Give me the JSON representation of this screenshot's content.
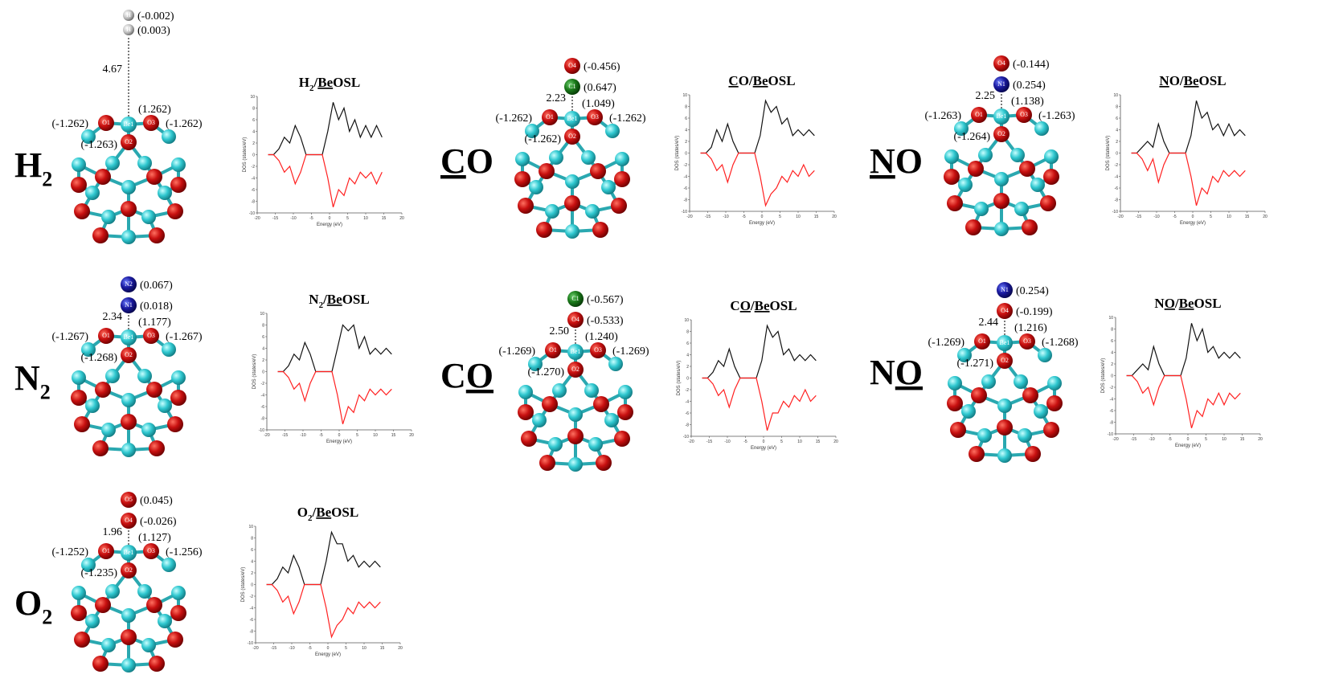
{
  "dos_axes": {
    "xlim": [
      -20,
      20
    ],
    "ylim": [
      -10,
      10
    ],
    "xticks": [
      -20,
      -15,
      -10,
      -5,
      0,
      5,
      10,
      15,
      20
    ],
    "yticks": [
      -10,
      -8,
      -6,
      -4,
      -2,
      0,
      2,
      4,
      6,
      8,
      10
    ],
    "xlabel": "Energy (eV)",
    "ylabel": "DOS (states/eV)",
    "energy": [
      -17,
      -15.5,
      -14,
      -12.5,
      -11,
      -9.5,
      -8,
      -6.5,
      -5,
      -3.5,
      -2,
      -0.5,
      1,
      2.5,
      4,
      5.5,
      7,
      8.5,
      10,
      11.5,
      13,
      14.5
    ]
  },
  "systems": [
    {
      "label": [
        {
          "text": "H"
        },
        {
          "text": "2",
          "sub": true
        }
      ],
      "distance": "4.67",
      "adsorbate": [
        {
          "atom": "H",
          "charge": "(0.003)"
        },
        {
          "atom": "H",
          "charge": "(-0.002)"
        }
      ],
      "surface": [
        {
          "atom": "O1",
          "charge": "(-1.262)"
        },
        {
          "atom": "Be1",
          "charge": "(1.262)"
        },
        {
          "atom": "O3",
          "charge": "(-1.262)"
        },
        {
          "atom": "O2",
          "charge": "(-1.263)"
        }
      ],
      "dos": {
        "title": [
          {
            "text": "H"
          },
          {
            "text": "2",
            "sub": true
          },
          {
            "text": "/"
          },
          {
            "text": "Be",
            "underline": true
          },
          {
            "text": "OSL"
          }
        ],
        "up": [
          0,
          0,
          1,
          3,
          2,
          5,
          3,
          0,
          0,
          0,
          0,
          4,
          9,
          6,
          8,
          4,
          6,
          3,
          5,
          3,
          5,
          3
        ],
        "down": [
          0,
          0,
          -1,
          -3,
          -2,
          -5,
          -3,
          0,
          0,
          0,
          0,
          -4,
          -9,
          -6,
          -7,
          -4,
          -5,
          -3,
          -4,
          -3,
          -5,
          -3
        ]
      }
    },
    {
      "label": [
        {
          "text": "C",
          "underline": true
        },
        {
          "text": "O"
        }
      ],
      "distance": "2.23",
      "adsorbate": [
        {
          "atom": "C1",
          "charge": "(0.647)"
        },
        {
          "atom": "O4",
          "charge": "(-0.456)"
        }
      ],
      "surface": [
        {
          "atom": "O1",
          "charge": "(-1.262)"
        },
        {
          "atom": "Be1",
          "charge": "(1.049)"
        },
        {
          "atom": "O3",
          "charge": "(-1.262)"
        },
        {
          "atom": "O2",
          "charge": "(-1.262)"
        }
      ],
      "dos": {
        "title": [
          {
            "text": "C",
            "underline": true
          },
          {
            "text": "O/"
          },
          {
            "text": "Be",
            "underline": true
          },
          {
            "text": "OSL"
          }
        ],
        "up": [
          0,
          0,
          1,
          4,
          2,
          5,
          2,
          0,
          0,
          0,
          0,
          3,
          9,
          7,
          8,
          5,
          6,
          3,
          4,
          3,
          4,
          3
        ],
        "down": [
          0,
          0,
          -1,
          -3,
          -2,
          -5,
          -2,
          0,
          0,
          0,
          0,
          -4,
          -9,
          -7,
          -6,
          -4,
          -5,
          -3,
          -4,
          -2,
          -4,
          -3
        ]
      }
    },
    {
      "label": [
        {
          "text": "N",
          "underline": true
        },
        {
          "text": "O"
        }
      ],
      "distance": "2.25",
      "adsorbate": [
        {
          "atom": "N1",
          "charge": "(0.254)"
        },
        {
          "atom": "O4",
          "charge": "(-0.144)"
        }
      ],
      "surface": [
        {
          "atom": "O1",
          "charge": "(-1.263)"
        },
        {
          "atom": "Be1",
          "charge": "(1.138)"
        },
        {
          "atom": "O3",
          "charge": "(-1.263)"
        },
        {
          "atom": "O2",
          "charge": "(-1.264)"
        }
      ],
      "dos": {
        "title": [
          {
            "text": "N",
            "underline": true
          },
          {
            "text": "O/"
          },
          {
            "text": "Be",
            "underline": true
          },
          {
            "text": "OSL"
          }
        ],
        "up": [
          0,
          0,
          1,
          2,
          1,
          5,
          2,
          0,
          0,
          0,
          0,
          3,
          9,
          6,
          7,
          4,
          5,
          3,
          5,
          3,
          4,
          3
        ],
        "down": [
          0,
          0,
          -1,
          -3,
          -1,
          -5,
          -2,
          0,
          0,
          0,
          0,
          -4,
          -9,
          -6,
          -7,
          -4,
          -5,
          -3,
          -4,
          -3,
          -4,
          -3
        ]
      }
    },
    {
      "label": [
        {
          "text": "N"
        },
        {
          "text": "2",
          "sub": true
        }
      ],
      "distance": "2.34",
      "adsorbate": [
        {
          "atom": "N1",
          "charge": "(0.018)"
        },
        {
          "atom": "N2",
          "charge": "(0.067)"
        }
      ],
      "surface": [
        {
          "atom": "O1",
          "charge": "(-1.267)"
        },
        {
          "atom": "Be1",
          "charge": "(1.177)"
        },
        {
          "atom": "O3",
          "charge": "(-1.267)"
        },
        {
          "atom": "O2",
          "charge": "(-1.268)"
        }
      ],
      "dos": {
        "title": [
          {
            "text": "N"
          },
          {
            "text": "2",
            "sub": true
          },
          {
            "text": "/"
          },
          {
            "text": "Be",
            "underline": true
          },
          {
            "text": "OSL"
          }
        ],
        "up": [
          0,
          0,
          1,
          3,
          2,
          5,
          3,
          0,
          0,
          0,
          0,
          4,
          8,
          7,
          8,
          4,
          6,
          3,
          4,
          3,
          4,
          3
        ],
        "down": [
          0,
          0,
          -1,
          -3,
          -2,
          -5,
          -2,
          0,
          0,
          0,
          0,
          -4,
          -9,
          -6,
          -7,
          -4,
          -5,
          -3,
          -4,
          -3,
          -4,
          -3
        ]
      }
    },
    {
      "label": [
        {
          "text": "C"
        },
        {
          "text": "O",
          "underline": true
        }
      ],
      "distance": "2.50",
      "adsorbate": [
        {
          "atom": "O4",
          "charge": "(-0.533)"
        },
        {
          "atom": "C1",
          "charge": "(-0.567)"
        }
      ],
      "surface": [
        {
          "atom": "O1",
          "charge": "(-1.269)"
        },
        {
          "atom": "Be1",
          "charge": "(1.240)"
        },
        {
          "atom": "O3",
          "charge": "(-1.269)"
        },
        {
          "atom": "O2",
          "charge": "(-1.270)"
        }
      ],
      "dos": {
        "title": [
          {
            "text": "C"
          },
          {
            "text": "O",
            "underline": true
          },
          {
            "text": "/"
          },
          {
            "text": "Be",
            "underline": true
          },
          {
            "text": "OSL"
          }
        ],
        "up": [
          0,
          0,
          1,
          3,
          2,
          5,
          2,
          0,
          0,
          0,
          0,
          3,
          9,
          7,
          8,
          4,
          5,
          3,
          4,
          3,
          4,
          3
        ],
        "down": [
          0,
          0,
          -1,
          -3,
          -2,
          -5,
          -2,
          0,
          0,
          0,
          0,
          -4,
          -9,
          -6,
          -6,
          -4,
          -5,
          -3,
          -4,
          -2,
          -4,
          -3
        ]
      }
    },
    {
      "label": [
        {
          "text": "N"
        },
        {
          "text": "O",
          "underline": true
        }
      ],
      "distance": "2.44",
      "adsorbate": [
        {
          "atom": "O4",
          "charge": "(-0.199)"
        },
        {
          "atom": "N1",
          "charge": "(0.254)"
        }
      ],
      "surface": [
        {
          "atom": "O1",
          "charge": "(-1.269)"
        },
        {
          "atom": "Be1",
          "charge": "(1.216)"
        },
        {
          "atom": "O3",
          "charge": "(-1.268)"
        },
        {
          "atom": "O2",
          "charge": "(-1.271)"
        }
      ],
      "dos": {
        "title": [
          {
            "text": "N"
          },
          {
            "text": "O",
            "underline": true
          },
          {
            "text": "/"
          },
          {
            "text": "Be",
            "underline": true
          },
          {
            "text": "OSL"
          }
        ],
        "up": [
          0,
          0,
          1,
          2,
          1,
          5,
          2,
          0,
          0,
          0,
          0,
          3,
          9,
          6,
          8,
          4,
          5,
          3,
          4,
          3,
          4,
          3
        ],
        "down": [
          0,
          0,
          -1,
          -3,
          -2,
          -5,
          -2,
          0,
          0,
          0,
          0,
          -4,
          -9,
          -6,
          -7,
          -4,
          -5,
          -3,
          -5,
          -3,
          -4,
          -3
        ]
      }
    },
    {
      "label": [
        {
          "text": "O"
        },
        {
          "text": "2",
          "sub": true
        }
      ],
      "distance": "1.96",
      "adsorbate": [
        {
          "atom": "O4",
          "charge": "(-0.026)"
        },
        {
          "atom": "O5",
          "charge": "(0.045)"
        }
      ],
      "surface": [
        {
          "atom": "O1",
          "charge": "(-1.252)"
        },
        {
          "atom": "Be1",
          "charge": "(1.127)"
        },
        {
          "atom": "O3",
          "charge": "(-1.256)"
        },
        {
          "atom": "O2",
          "charge": "(-1.235)"
        }
      ],
      "dos": {
        "title": [
          {
            "text": "O"
          },
          {
            "text": "2",
            "sub": true
          },
          {
            "text": "/"
          },
          {
            "text": "Be",
            "underline": true
          },
          {
            "text": "OSL"
          }
        ],
        "up": [
          0,
          0,
          1,
          3,
          2,
          5,
          3,
          0,
          0,
          0,
          0,
          4,
          9,
          7,
          7,
          4,
          5,
          3,
          4,
          3,
          4,
          3
        ],
        "down": [
          0,
          0,
          -1,
          -3,
          -2,
          -5,
          -3,
          0,
          0,
          0,
          0,
          -4,
          -9,
          -7,
          -6,
          -4,
          -5,
          -3,
          -4,
          -3,
          -4,
          -3
        ]
      }
    }
  ]
}
